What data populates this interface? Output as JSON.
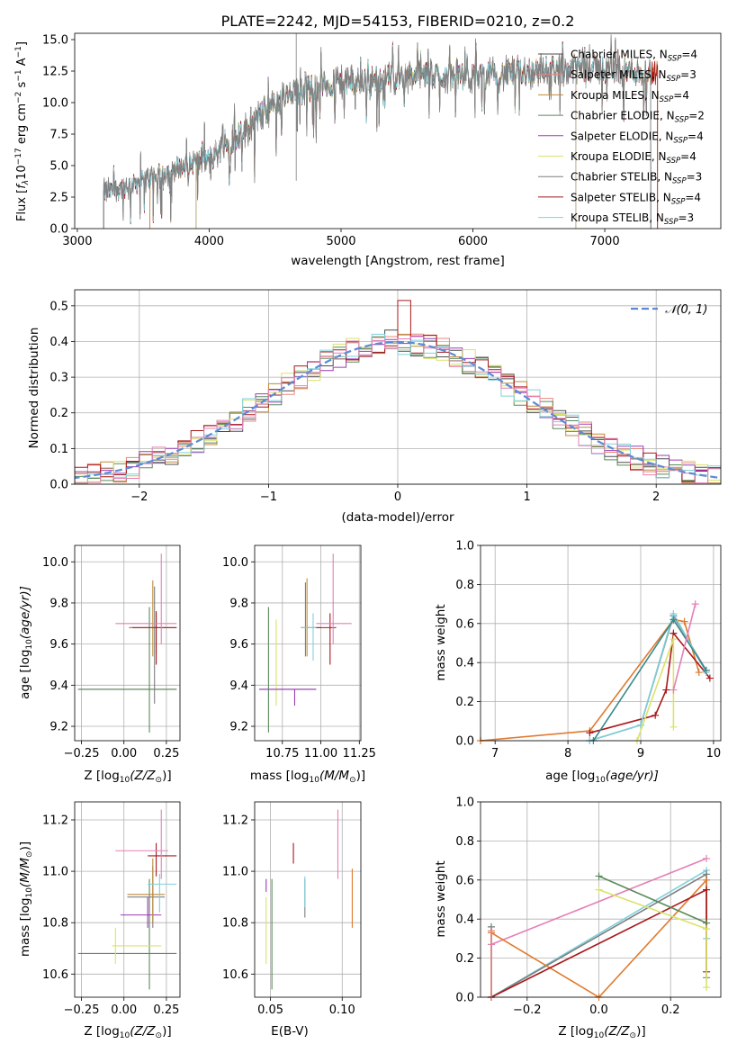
{
  "figure_title": "PLATE=2242, MJD=54153, FIBERID=0210, z=0.2",
  "colors": {
    "Chabrier MILES": "#4c4c4c",
    "Salpeter MILES": "#e8877f",
    "Kroupa MILES": "#bf8a3a",
    "Chabrier ELODIE": "#5a8a5a",
    "Salpeter ELODIE": "#9b3bb5",
    "Kroupa ELODIE": "#d9e36b",
    "Chabrier STELIB": "#7f7f7f",
    "Salpeter STELIB": "#a8191c",
    "Kroupa STELIB": "#7fd0dc",
    "normal": "#5b8bd6",
    "pink": "#e57fb8",
    "orange": "#e07a2e",
    "teal": "#3a8a8a"
  },
  "spectrum": {
    "xlabel": "wavelength [Angstrom, rest frame]",
    "ylabel_pre": "Flux [",
    "ylabel_f": "f",
    "ylabel_lam": "λ",
    "ylabel_mid": "10",
    "ylabel_exp1": "−17",
    "ylabel_post": " erg cm",
    "ylabel_exp2": "−2",
    "ylabel_s": " s",
    "ylabel_exp3": "−1",
    "ylabel_end": " A",
    "ylabel_exp4": "−1",
    "ylabel_close": "]",
    "xticks": [
      "3000",
      "4000",
      "5000",
      "6000",
      "7000"
    ],
    "yticks": [
      "0.0",
      "2.5",
      "5.0",
      "7.5",
      "10.0",
      "12.5",
      "15.0"
    ],
    "legend": [
      {
        "pre": "Chabrier MILES, N",
        "sub": "SSP",
        "post": "=4"
      },
      {
        "pre": "Salpeter MILES, N",
        "sub": "SSP",
        "post": "=3"
      },
      {
        "pre": "Kroupa MILES, N",
        "sub": "SSP",
        "post": "=4"
      },
      {
        "pre": "Chabrier ELODIE, N",
        "sub": "SSP",
        "post": "=2"
      },
      {
        "pre": "Salpeter ELODIE, N",
        "sub": "SSP",
        "post": "=4"
      },
      {
        "pre": "Kroupa ELODIE, N",
        "sub": "SSP",
        "post": "=4"
      },
      {
        "pre": "Chabrier STELIB, N",
        "sub": "SSP",
        "post": "=3"
      },
      {
        "pre": "Salpeter STELIB, N",
        "sub": "SSP",
        "post": "=4"
      },
      {
        "pre": "Kroupa STELIB, N",
        "sub": "SSP",
        "post": "=3"
      }
    ]
  },
  "residuals": {
    "xlabel": "(data-model)/error",
    "ylabel": "Normed distribution",
    "xticks": [
      "−2",
      "−1",
      "0",
      "1",
      "2"
    ],
    "yticks": [
      "0.0",
      "0.1",
      "0.2",
      "0.3",
      "0.4",
      "0.5"
    ],
    "legend": "𝒩(0, 1)"
  },
  "p_age_z": {
    "xlabel_pre": "Z [log",
    "xlabel_sub": "10",
    "xlabel_post": "(Z/Z",
    "xlabel_sun": "⊙",
    "xlabel_end": ")]",
    "ylabel_pre": "age  [log",
    "ylabel_sub": "10",
    "ylabel_post": "(age/yr)]",
    "xticks": [
      "−0.25",
      "0.00",
      "0.25"
    ],
    "yticks": [
      "9.2",
      "9.4",
      "9.6",
      "9.8",
      "10.0"
    ]
  },
  "p_age_mass": {
    "xlabel_pre": "mass [log",
    "xlabel_sub": "10",
    "xlabel_post": "(M/M",
    "xlabel_sun": "⊙",
    "xlabel_end": ")]",
    "xticks": [
      "10.75",
      "11.00",
      "11.25"
    ],
    "yticks": [
      "9.2",
      "9.4",
      "9.6",
      "9.8",
      "10.0"
    ]
  },
  "p_weight_age": {
    "xlabel_pre": "age  [log",
    "xlabel_sub": "10",
    "xlabel_post": "(age/yr)]",
    "ylabel": "mass weight",
    "xticks": [
      "7",
      "8",
      "9",
      "10"
    ],
    "yticks": [
      "0.0",
      "0.2",
      "0.4",
      "0.6",
      "0.8",
      "1.0"
    ]
  },
  "p_mass_z": {
    "xlabel_pre": "Z [log",
    "xlabel_sub": "10",
    "xlabel_post": "(Z/Z",
    "xlabel_sun": "⊙",
    "xlabel_end": ")]",
    "ylabel_pre": "mass [log",
    "ylabel_sub": "10",
    "ylabel_post": "(M/M",
    "ylabel_sun": "⊙",
    "ylabel_end": ")]",
    "xticks": [
      "−0.25",
      "0.00",
      "0.25"
    ],
    "yticks": [
      "10.6",
      "10.8",
      "11.0",
      "11.2"
    ]
  },
  "p_mass_ebv": {
    "xlabel": "E(B-V)",
    "xticks": [
      "0.05",
      "0.10"
    ],
    "yticks": [
      "10.6",
      "10.8",
      "11.0",
      "11.2"
    ]
  },
  "p_weight_z": {
    "xlabel_pre": "Z [log",
    "xlabel_sub": "10",
    "xlabel_post": "(Z/Z",
    "xlabel_sun": "⊙",
    "xlabel_end": ")]",
    "ylabel": "mass weight",
    "xticks": [
      "−0.2",
      "0.0",
      "0.2"
    ],
    "yticks": [
      "0.0",
      "0.2",
      "0.4",
      "0.6",
      "0.8",
      "1.0"
    ]
  },
  "chart_data": [
    {
      "type": "line",
      "title": "PLATE=2242, MJD=54153, FIBERID=0210, z=0.2",
      "xlabel": "wavelength [Angstrom, rest frame]",
      "ylabel": "Flux [f_λ 10^-17 erg cm^-2 s^-1 A^-1]",
      "xlim": [
        2980,
        7880
      ],
      "ylim": [
        0,
        15.5
      ],
      "legend_position": "right",
      "continuum": {
        "x": [
          3200,
          3500,
          3700,
          3900,
          4000,
          4100,
          4300,
          4500,
          4800,
          5200,
          5600,
          6000,
          6400,
          6800,
          7200,
          7350
        ],
        "y": [
          2.8,
          3.8,
          4.6,
          5.3,
          5.5,
          6.5,
          8.0,
          10.0,
          11.3,
          11.8,
          12.2,
          12.0,
          12.5,
          12.8,
          12.5,
          12.4
        ]
      },
      "series": [
        {
          "name": "Chabrier MILES, N_SSP=4",
          "start": 3200,
          "end": 7350
        },
        {
          "name": "Salpeter MILES, N_SSP=3",
          "start": 3550,
          "end": 7350
        },
        {
          "name": "Kroupa MILES, N_SSP=4",
          "start": 3550,
          "end": 7400
        },
        {
          "name": "Chabrier ELODIE, N_SSP=2",
          "start": 3900,
          "end": 6780
        },
        {
          "name": "Salpeter ELODIE, N_SSP=4",
          "start": 3900,
          "end": 6780
        },
        {
          "name": "Kroupa ELODIE, N_SSP=4",
          "start": 3900,
          "end": 6780
        },
        {
          "name": "Chabrier STELIB, N_SSP=3",
          "start": 3200,
          "end": 7350
        },
        {
          "name": "Salpeter STELIB, N_SSP=4",
          "start": 3200,
          "end": 7400
        },
        {
          "name": "Kroupa STELIB, N_SSP=3",
          "start": 3200,
          "end": 7350
        }
      ]
    },
    {
      "type": "line",
      "xlabel": "(data-model)/error",
      "ylabel": "Normed distribution",
      "xlim": [
        -2.5,
        2.5
      ],
      "ylim": [
        0,
        0.545
      ],
      "grid": true,
      "legend_position": "top-right",
      "bins": {
        "start": -2.5,
        "width": 0.1,
        "count": 50
      },
      "series": [
        {
          "name": "𝒩(0, 1)",
          "kind": "dashed-gaussian"
        }
      ]
    },
    {
      "type": "scatter",
      "xlabel": "Z [log10(Z/Z⊙)]",
      "ylabel": "age [log10(age/yr)]",
      "xlim": [
        -0.29,
        0.33
      ],
      "ylim": [
        9.13,
        10.08
      ],
      "grid": true,
      "points": [
        {
          "c": "Salpeter ELODIE",
          "x": -0.27,
          "xe1": -0.27,
          "xe2": 0.31,
          "y": 9.38,
          "ye1": 9.38,
          "ye2": 9.38
        },
        {
          "c": "Kroupa ELODIE",
          "x": -0.05,
          "xe1": -0.07,
          "xe2": 0.28,
          "y": 9.38,
          "ye1": 9.38,
          "ye2": 9.38
        },
        {
          "c": "Chabrier ELODIE",
          "x": 0.15,
          "xe1": -0.27,
          "xe2": 0.31,
          "y": 9.38,
          "ye1": 9.17,
          "ye2": 9.78
        },
        {
          "c": "Kroupa MILES",
          "x": 0.17,
          "xe1": 0.03,
          "xe2": 0.31,
          "y": 9.68,
          "ye1": 9.54,
          "ye2": 9.91
        },
        {
          "c": "Chabrier STELIB",
          "x": 0.18,
          "xe1": 0.03,
          "xe2": 0.31,
          "y": 9.68,
          "ye1": 9.31,
          "ye2": 9.88
        },
        {
          "c": "Kroupa STELIB",
          "x": 0.19,
          "xe1": 0.05,
          "xe2": 0.31,
          "y": 9.68,
          "ye1": 9.55,
          "ye2": 9.75
        },
        {
          "c": "Salpeter STELIB",
          "x": 0.19,
          "xe1": 0.05,
          "xe2": 0.31,
          "y": 9.68,
          "ye1": 9.5,
          "ye2": 9.76
        },
        {
          "c": "pink",
          "x": 0.22,
          "xe1": -0.05,
          "xe2": 0.31,
          "y": 9.7,
          "ye1": 9.6,
          "ye2": 10.04
        }
      ]
    },
    {
      "type": "scatter",
      "xlabel": "mass [log10(M/M⊙)]",
      "xlim": [
        10.57,
        11.26
      ],
      "ylim": [
        9.13,
        10.08
      ],
      "grid": true,
      "points": [
        {
          "c": "Chabrier ELODIE",
          "x": 10.66,
          "xe1": 10.6,
          "xe2": 10.97,
          "y": 9.38,
          "ye1": 9.17,
          "ye2": 9.78
        },
        {
          "c": "Kroupa ELODIE",
          "x": 10.71,
          "xe1": 10.71,
          "xe2": 10.71,
          "y": 9.38,
          "ye1": 9.3,
          "ye2": 9.72
        },
        {
          "c": "Salpeter ELODIE",
          "x": 10.83,
          "xe1": 10.6,
          "xe2": 10.97,
          "y": 9.38,
          "ye1": 9.3,
          "ye2": 9.38
        },
        {
          "c": "Chabrier STELIB",
          "x": 10.9,
          "xe1": 10.87,
          "xe2": 11.0,
          "y": 9.68,
          "ye1": 9.54,
          "ye2": 9.9
        },
        {
          "c": "Kroupa MILES",
          "x": 10.91,
          "xe1": 10.87,
          "xe2": 11.0,
          "y": 9.68,
          "ye1": 9.54,
          "ye2": 9.92
        },
        {
          "c": "Kroupa STELIB",
          "x": 10.95,
          "xe1": 10.87,
          "xe2": 11.0,
          "y": 9.68,
          "ye1": 9.52,
          "ye2": 9.75
        },
        {
          "c": "Salpeter STELIB",
          "x": 11.06,
          "xe1": 10.97,
          "xe2": 11.1,
          "y": 9.68,
          "ye1": 9.5,
          "ye2": 9.75
        },
        {
          "c": "pink",
          "x": 11.08,
          "xe1": 10.97,
          "xe2": 11.2,
          "y": 9.7,
          "ye1": 9.6,
          "ye2": 10.04
        }
      ]
    },
    {
      "type": "line",
      "xlabel": "age [log10(age/yr)]",
      "ylabel": "mass weight",
      "xlim": [
        6.8,
        10.1
      ],
      "ylim": [
        0,
        1
      ],
      "grid": true,
      "series": [
        {
          "c": "orange",
          "x": [
            6.8,
            8.3,
            9.45,
            9.6,
            9.8
          ],
          "y": [
            0.0,
            0.05,
            0.62,
            0.61,
            0.35
          ]
        },
        {
          "c": "Salpeter STELIB",
          "x": [
            8.3,
            9.2,
            9.35,
            9.45,
            9.95
          ],
          "y": [
            0.04,
            0.13,
            0.26,
            0.55,
            0.32
          ]
        },
        {
          "c": "Chabrier STELIB",
          "x": [
            8.3,
            9.0,
            9.45,
            9.9
          ],
          "y": [
            0.0,
            0.08,
            0.64,
            0.36
          ]
        },
        {
          "c": "Kroupa STELIB",
          "x": [
            8.3,
            9.0,
            9.45,
            9.9
          ],
          "y": [
            0.0,
            0.08,
            0.65,
            0.35
          ]
        },
        {
          "c": "Kroupa ELODIE",
          "x": [
            8.95,
            9.45,
            9.45
          ],
          "y": [
            0.0,
            0.52,
            0.07
          ]
        },
        {
          "c": "teal",
          "x": [
            8.35,
            9.45,
            9.9
          ],
          "y": [
            0.0,
            0.62,
            0.36
          ]
        },
        {
          "c": "pink",
          "x": [
            9.45,
            9.75
          ],
          "y": [
            0.26,
            0.7
          ]
        }
      ]
    },
    {
      "type": "scatter",
      "xlabel": "Z [log10(Z/Z⊙)]",
      "ylabel": "mass [log10(M/M⊙)]",
      "xlim": [
        -0.29,
        0.33
      ],
      "ylim": [
        10.51,
        11.27
      ],
      "grid": true,
      "points": [
        {
          "c": "Chabrier ELODIE",
          "x": 0.15,
          "xe1": -0.27,
          "xe2": 0.31,
          "y": 10.68,
          "ye1": 10.54,
          "ye2": 10.97
        },
        {
          "c": "Kroupa ELODIE",
          "x": -0.05,
          "xe1": -0.07,
          "xe2": 0.22,
          "y": 10.71,
          "ye1": 10.64,
          "ye2": 10.78
        },
        {
          "c": "Salpeter ELODIE",
          "x": 0.14,
          "xe1": -0.02,
          "xe2": 0.22,
          "y": 10.83,
          "ye1": 10.78,
          "ye2": 10.9
        },
        {
          "c": "Chabrier STELIB",
          "x": 0.17,
          "xe1": 0.02,
          "xe2": 0.24,
          "y": 10.9,
          "ye1": 10.78,
          "ye2": 11.02
        },
        {
          "c": "Kroupa MILES",
          "x": 0.17,
          "xe1": 0.02,
          "xe2": 0.24,
          "y": 10.91,
          "ye1": 10.8,
          "ye2": 11.05
        },
        {
          "c": "Kroupa STELIB",
          "x": 0.21,
          "xe1": 0.14,
          "xe2": 0.31,
          "y": 10.95,
          "ye1": 10.84,
          "ye2": 10.99
        },
        {
          "c": "Salpeter STELIB",
          "x": 0.19,
          "xe1": 0.14,
          "xe2": 0.31,
          "y": 11.06,
          "ye1": 10.98,
          "ye2": 11.11
        },
        {
          "c": "pink",
          "x": 0.22,
          "xe1": -0.05,
          "xe2": 0.26,
          "y": 11.08,
          "ye1": 10.97,
          "ye2": 11.24
        }
      ]
    },
    {
      "type": "scatter",
      "xlabel": "E(B-V)",
      "xlim": [
        0.039,
        0.113
      ],
      "ylim": [
        10.51,
        11.27
      ],
      "grid": true,
      "points": [
        {
          "c": "Kroupa ELODIE",
          "x": 0.047,
          "ye1": 10.64,
          "ye2": 10.9
        },
        {
          "c": "Salpeter ELODIE",
          "x": 0.047,
          "ye1": 10.92,
          "ye2": 10.97
        },
        {
          "c": "Chabrier ELODIE",
          "x": 0.051,
          "ye1": 10.54,
          "ye2": 10.97
        },
        {
          "c": "Salpeter STELIB",
          "x": 0.066,
          "ye1": 11.03,
          "ye2": 11.11
        },
        {
          "c": "Chabrier STELIB",
          "x": 0.074,
          "ye1": 10.82,
          "ye2": 10.97
        },
        {
          "c": "Kroupa STELIB",
          "x": 0.074,
          "ye1": 10.86,
          "ye2": 10.98
        },
        {
          "c": "pink",
          "x": 0.097,
          "ye1": 10.97,
          "ye2": 11.24
        },
        {
          "c": "orange",
          "x": 0.107,
          "ye1": 10.78,
          "ye2": 11.01
        }
      ]
    },
    {
      "type": "line",
      "xlabel": "Z [log10(Z/Z⊙)]",
      "ylabel": "mass weight",
      "xlim": [
        -0.33,
        0.34
      ],
      "ylim": [
        0,
        1
      ],
      "grid": true,
      "series": [
        {
          "c": "Kroupa STELIB",
          "x": [
            -0.3,
            -0.3,
            0.3,
            0.3
          ],
          "y": [
            0.36,
            0.0,
            0.65,
            0.3
          ]
        },
        {
          "c": "Chabrier STELIB",
          "x": [
            -0.3,
            -0.3,
            0.3,
            0.3
          ],
          "y": [
            0.36,
            0.0,
            0.63,
            0.1
          ]
        },
        {
          "c": "pink",
          "x": [
            -0.3,
            0.3
          ],
          "y": [
            0.27,
            0.71
          ]
        },
        {
          "c": "orange",
          "x": [
            -0.3,
            0.0,
            0.3,
            0.3
          ],
          "y": [
            0.33,
            0.0,
            0.6,
            0.35
          ]
        },
        {
          "c": "Salpeter STELIB",
          "x": [
            -0.3,
            0.3,
            0.3
          ],
          "y": [
            0.0,
            0.55,
            0.13
          ]
        },
        {
          "c": "Chabrier ELODIE",
          "x": [
            0.0,
            0.3
          ],
          "y": [
            0.62,
            0.38
          ]
        },
        {
          "c": "Kroupa ELODIE",
          "x": [
            0.0,
            0.3,
            0.3
          ],
          "y": [
            0.55,
            0.35,
            0.05
          ]
        },
        {
          "c": "Salpeter MILES",
          "x": [
            -0.3,
            -0.3
          ],
          "y": [
            0.34,
            0.0
          ]
        }
      ]
    }
  ]
}
